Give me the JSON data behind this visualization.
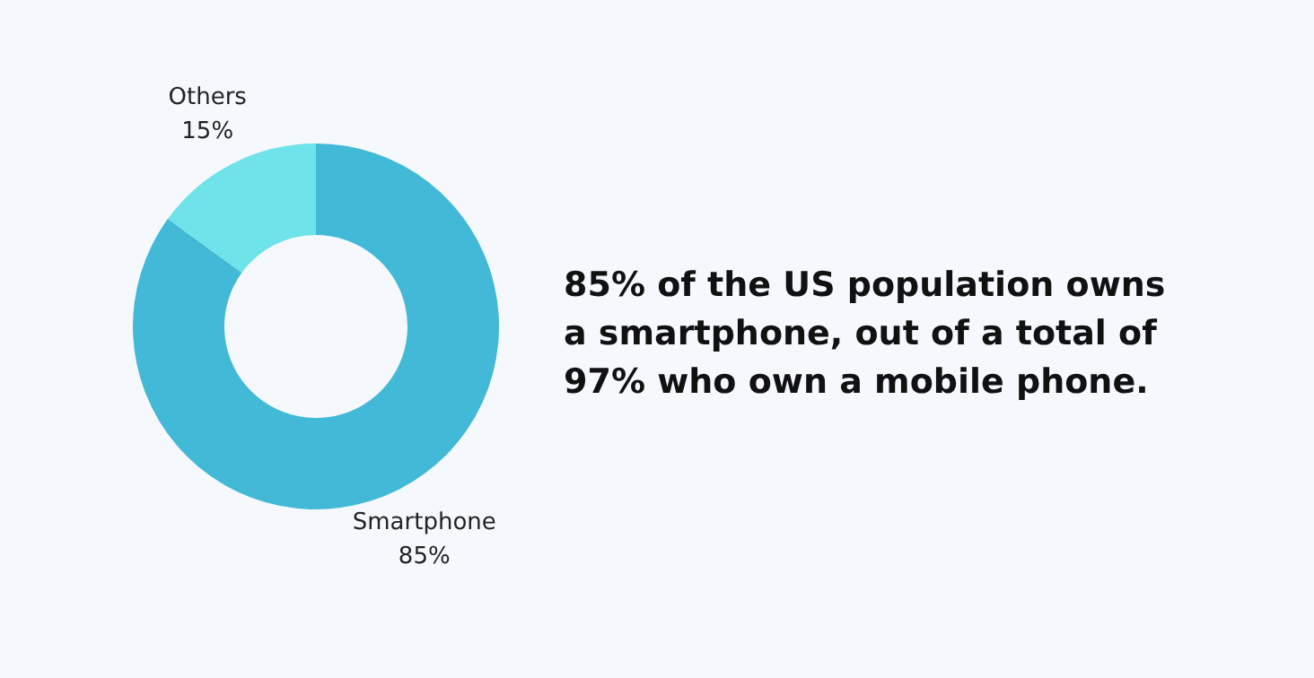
{
  "chart_data": {
    "type": "donut",
    "categories": [
      "Smartphone",
      "Others"
    ],
    "values": [
      85,
      15
    ],
    "colors": [
      "#43b9d8",
      "#6ee3e9"
    ],
    "value_labels": [
      "85%",
      "15%"
    ],
    "legend": false,
    "annotations": [
      "85% of the US population owns a smartphone, out of a total of 97% who own a mobile phone."
    ]
  }
}
